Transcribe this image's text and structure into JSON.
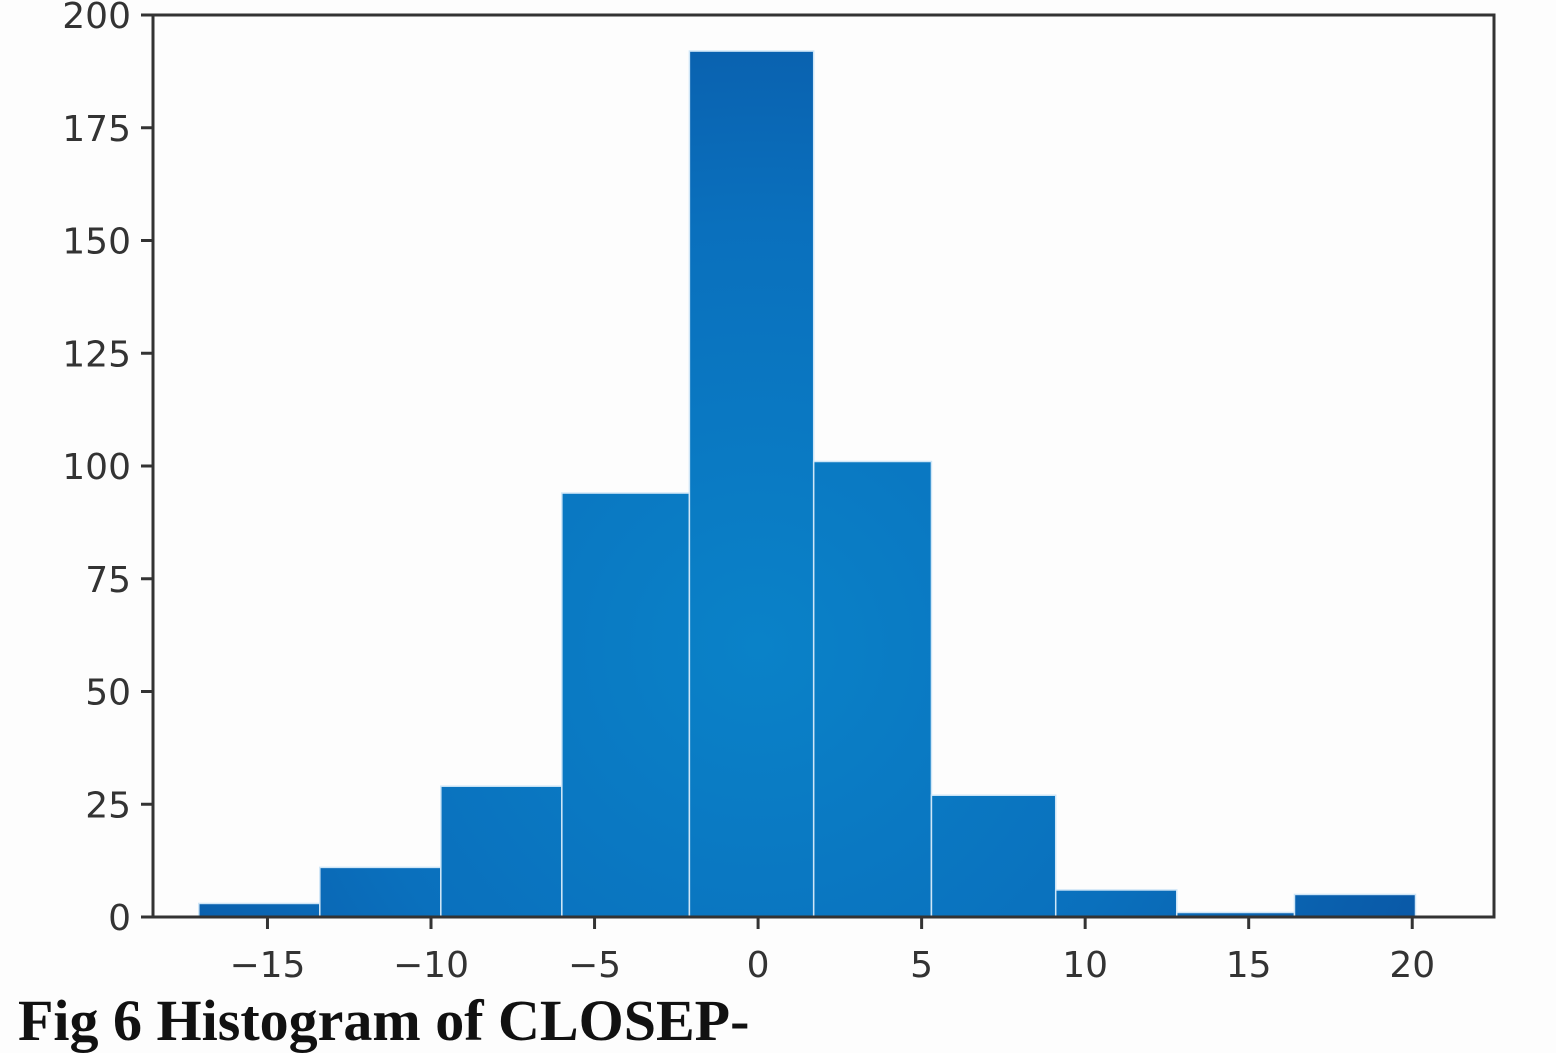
{
  "caption": "Fig 6 Histogram of CLOSEP-",
  "chart_data": {
    "type": "bar",
    "title": "",
    "xlabel": "",
    "ylabel": "",
    "xlim": [
      -18.5,
      22.5
    ],
    "ylim": [
      0,
      200
    ],
    "xticks": [
      -15,
      -10,
      -5,
      0,
      5,
      10,
      15,
      20
    ],
    "xtick_labels": [
      "−15",
      "−10",
      "−5",
      "0",
      "5",
      "10",
      "15",
      "20"
    ],
    "yticks": [
      0,
      25,
      50,
      75,
      100,
      125,
      150,
      175,
      200
    ],
    "ytick_labels": [
      "0",
      "25",
      "50",
      "75",
      "100",
      "125",
      "150",
      "175",
      "200"
    ],
    "bin_edges": [
      -17.1,
      -13.4,
      -9.7,
      -6.0,
      -2.1,
      1.7,
      5.3,
      9.1,
      12.8,
      16.4,
      20.1
    ],
    "counts": [
      3,
      11,
      29,
      94,
      192,
      101,
      27,
      6,
      1,
      5
    ],
    "bar_color": "#0a70bd",
    "edge_color": "#cfe6f7",
    "grid": false
  }
}
